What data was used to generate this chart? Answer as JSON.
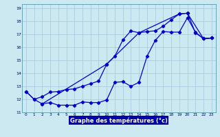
{
  "xlabel": "Graphe des températures (°c)",
  "xlim": [
    -0.5,
    23.5
  ],
  "ylim": [
    11,
    19.3
  ],
  "yticks": [
    11,
    12,
    13,
    14,
    15,
    16,
    17,
    18,
    19
  ],
  "xticks": [
    0,
    1,
    2,
    3,
    4,
    5,
    6,
    7,
    8,
    9,
    10,
    11,
    12,
    13,
    14,
    15,
    16,
    17,
    18,
    19,
    20,
    21,
    22,
    23
  ],
  "bg_color": "#cce8f0",
  "grid_color": "#aaccdd",
  "line_color": "#0000cc",
  "xlabel_bg": "#0000aa",
  "xlabel_fg": "#ffffff",
  "line1_x": [
    0,
    1,
    2,
    3,
    4,
    5,
    6,
    7,
    8,
    9,
    10,
    11,
    12,
    13,
    14,
    15,
    16,
    17,
    18,
    19,
    20,
    21,
    22,
    23
  ],
  "line1_y": [
    12.6,
    12.0,
    11.65,
    11.75,
    11.55,
    11.55,
    11.55,
    11.8,
    11.75,
    11.75,
    11.95,
    13.3,
    13.35,
    13.0,
    13.3,
    15.3,
    16.5,
    17.2,
    17.15,
    17.15,
    18.25,
    17.15,
    16.65,
    16.7
  ],
  "line2_x": [
    0,
    1,
    2,
    3,
    4,
    5,
    6,
    7,
    8,
    9,
    10,
    11,
    12,
    13,
    14,
    15,
    16,
    17,
    18,
    19,
    20,
    21,
    22,
    23
  ],
  "line2_y": [
    12.6,
    12.0,
    12.2,
    12.55,
    12.6,
    12.75,
    12.8,
    13.0,
    13.2,
    13.4,
    14.7,
    15.3,
    16.55,
    17.25,
    17.1,
    17.2,
    17.25,
    17.6,
    18.1,
    18.55,
    18.6,
    17.1,
    16.65,
    16.7
  ],
  "line3_x": [
    2,
    10,
    14,
    19,
    20,
    22,
    23
  ],
  "line3_y": [
    11.65,
    14.7,
    17.1,
    18.55,
    18.6,
    16.65,
    16.7
  ]
}
